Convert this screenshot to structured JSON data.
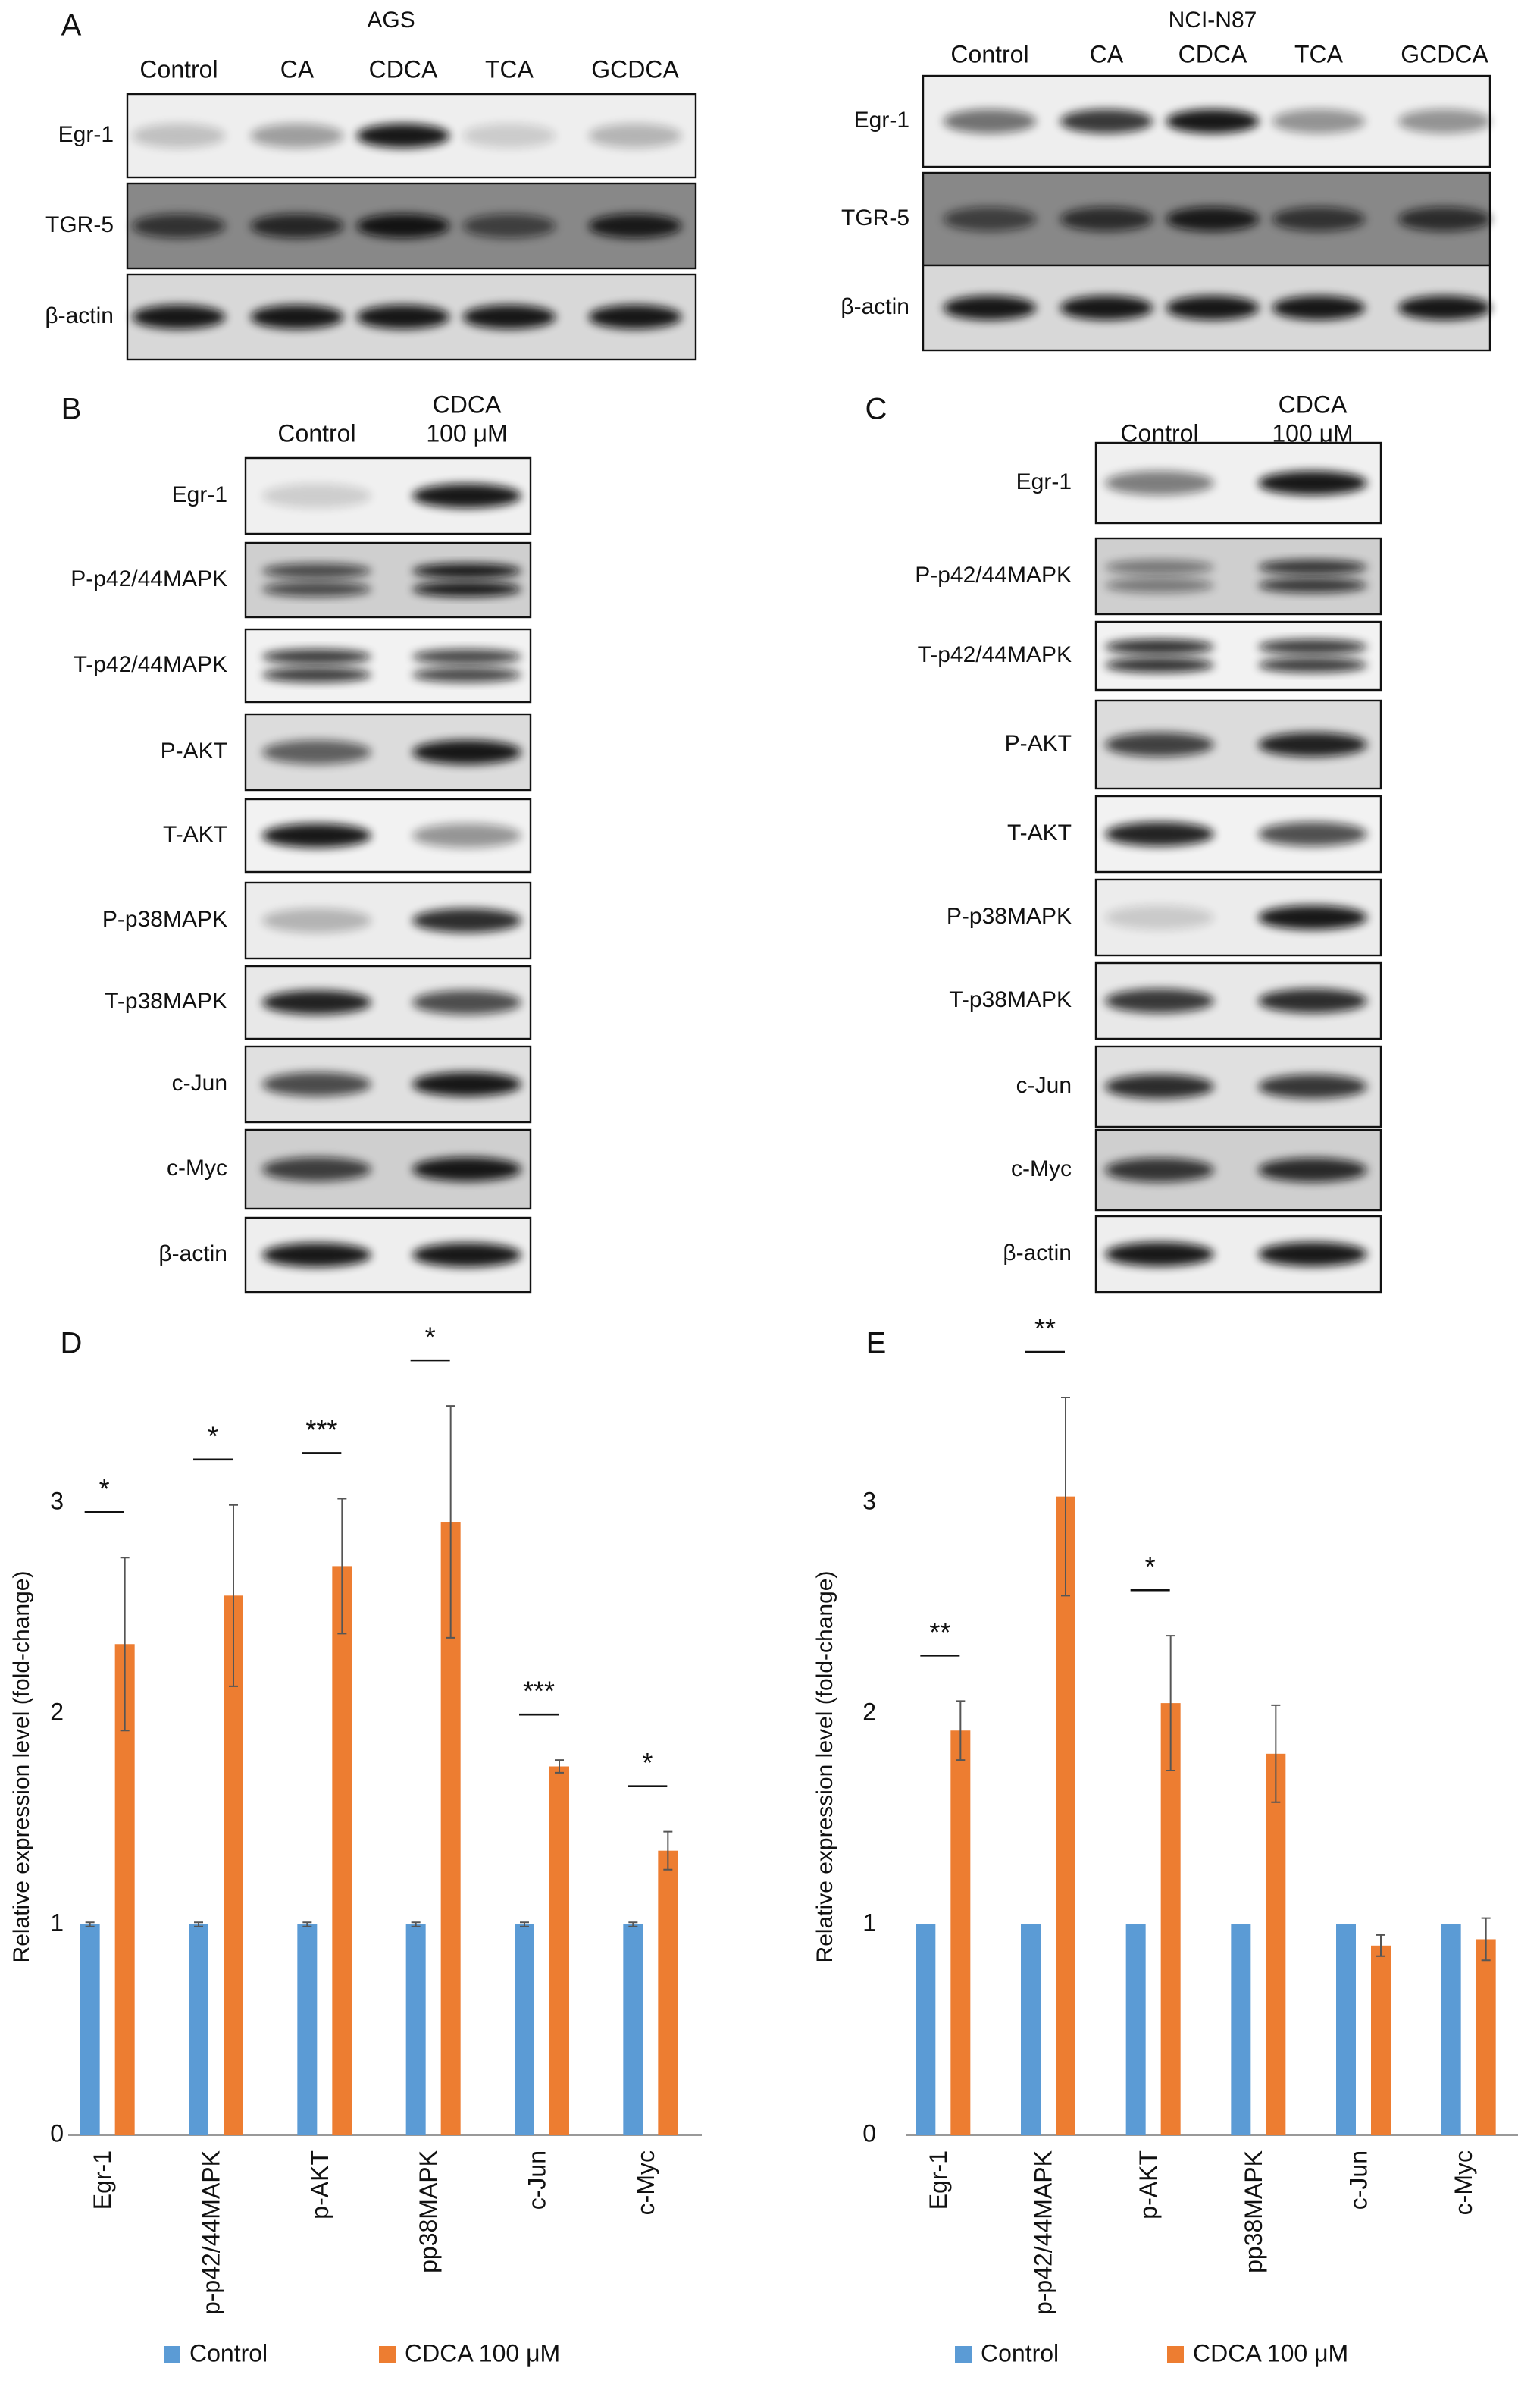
{
  "panels": {
    "A": {
      "letter": "A",
      "blots": [
        {
          "title": "AGS",
          "columns": [
            "Control",
            "CA",
            "CDCA",
            "TCA",
            "GCDCA"
          ],
          "rows": [
            "Egr-1",
            "TGR-5",
            "β-actin"
          ]
        },
        {
          "title": "NCI-N87",
          "columns": [
            "Control",
            "CA",
            "CDCA",
            "TCA",
            "GCDCA"
          ],
          "rows": [
            "Egr-1",
            "TGR-5",
            "β-actin"
          ]
        }
      ]
    },
    "B": {
      "letter": "B",
      "columns": [
        [
          "Control"
        ],
        [
          "CDCA",
          "100 μM"
        ]
      ],
      "rows": [
        "Egr-1",
        "P-p42/44MAPK",
        "T-p42/44MAPK",
        "P-AKT",
        "T-AKT",
        "P-p38MAPK",
        "T-p38MAPK",
        "c-Jun",
        "c-Myc",
        "β-actin"
      ]
    },
    "C": {
      "letter": "C",
      "columns": [
        [
          "Control"
        ],
        [
          "CDCA",
          "100 μM"
        ]
      ],
      "rows": [
        "Egr-1",
        "P-p42/44MAPK",
        "T-p42/44MAPK",
        "P-AKT",
        "T-AKT",
        "P-p38MAPK",
        "T-p38MAPK",
        "c-Jun",
        "c-Myc",
        "β-actin"
      ]
    }
  },
  "chart_data": [
    {
      "type": "bar",
      "panel_label": "D",
      "y_label": "Relative expression level (fold-change)",
      "categories": [
        "Egr-1",
        "p-p42/44MAPK",
        "p-AKT",
        "pp38MAPK",
        "c-Jun",
        "c-Myc"
      ],
      "series": [
        {
          "name": "Control",
          "color": "#5b9bd5",
          "values": [
            1,
            1,
            1,
            1,
            1,
            1
          ],
          "errors": [
            0.01,
            0.01,
            0.01,
            0.01,
            0.01,
            0.01
          ]
        },
        {
          "name": "CDCA 100 μM",
          "color": "#ed7d31",
          "values": [
            2.33,
            2.56,
            2.7,
            2.91,
            1.75,
            1.35
          ],
          "errors": [
            0.41,
            0.43,
            0.32,
            0.55,
            0.03,
            0.09
          ]
        }
      ],
      "significance": [
        "*",
        "*",
        "***",
        "*",
        "***",
        "*"
      ],
      "ylim": [
        0,
        3.5
      ],
      "yticks": [
        0,
        1,
        2,
        3
      ]
    },
    {
      "type": "bar",
      "panel_label": "E",
      "y_label": "Relative expression level (fold-change)",
      "categories": [
        "Egr-1",
        "p-p42/44MAPK",
        "p-AKT",
        "pp38MAPK",
        "c-Jun",
        "c-Myc"
      ],
      "series": [
        {
          "name": "Control",
          "color": "#5b9bd5",
          "values": [
            1,
            1,
            1,
            1,
            1,
            1
          ]
        },
        {
          "name": "CDCA 100 μM",
          "color": "#ed7d31",
          "values": [
            1.92,
            3.03,
            2.05,
            1.81,
            0.9,
            0.93
          ],
          "errors": [
            0.14,
            0.47,
            0.32,
            0.23,
            0.05,
            0.1
          ]
        }
      ],
      "significance": [
        "**",
        "**",
        "*",
        null,
        null,
        null
      ],
      "ylim": [
        0,
        3.5
      ],
      "yticks": [
        0,
        1,
        2,
        3
      ]
    }
  ]
}
